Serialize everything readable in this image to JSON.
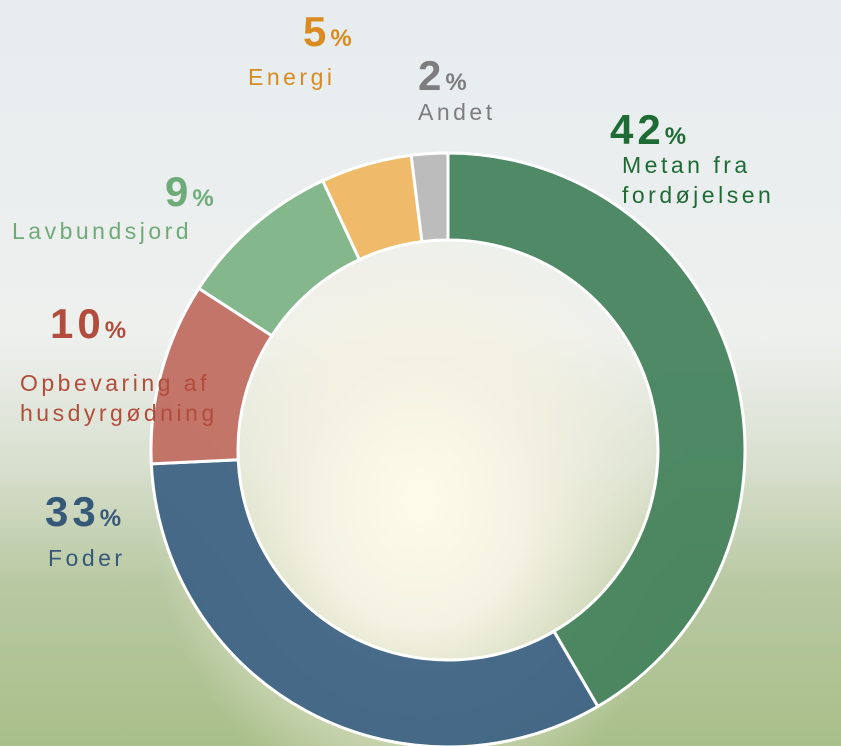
{
  "chart_data": {
    "type": "donut",
    "categories": [
      "Metan fra\nfordøjelsen",
      "Foder",
      "Opbevaring af\nhusdyrgødning",
      "Lavbundsjord",
      "Energi",
      "Andet"
    ],
    "values": [
      42,
      33,
      10,
      9,
      5,
      2
    ],
    "unit": "%",
    "colors": [
      "#41805a",
      "#3a5f82",
      "#c06a5e",
      "#7bb283",
      "#f0b55f",
      "#b7b7b7"
    ],
    "label_colors": [
      "#1f6b36",
      "#36597a",
      "#b24c3c",
      "#6dab78",
      "#d98b20",
      "#7d7d7d"
    ]
  }
}
